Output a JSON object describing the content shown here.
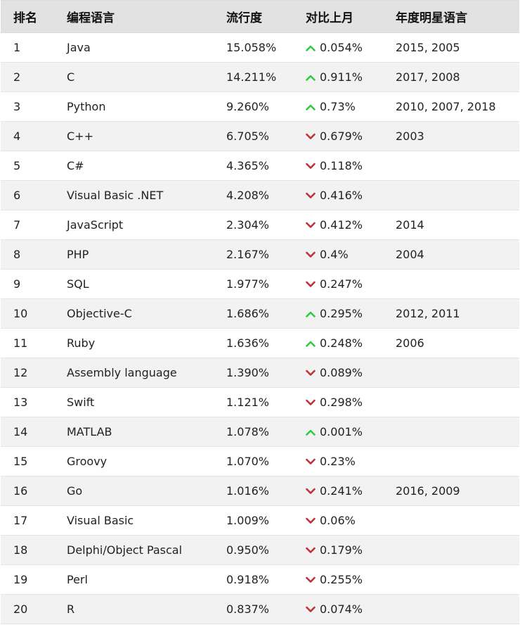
{
  "headers": [
    "排名",
    "编程语言",
    "流行度",
    "对比上月",
    "年度明星语言"
  ],
  "colors": {
    "up": "#2ecc40",
    "down": "#c0303a",
    "header_bg": "#e2e2e2",
    "stripe": "#f2f2f2"
  },
  "rows": [
    {
      "rank": "1",
      "lang": "Java",
      "pop": "15.058%",
      "dir": "up",
      "change": "0.054%",
      "star": "2015, 2005"
    },
    {
      "rank": "2",
      "lang": "C",
      "pop": "14.211%",
      "dir": "up",
      "change": "0.911%",
      "star": "2017, 2008"
    },
    {
      "rank": "3",
      "lang": "Python",
      "pop": "9.260%",
      "dir": "up",
      "change": "0.73%",
      "star": "2010, 2007, 2018"
    },
    {
      "rank": "4",
      "lang": "C++",
      "pop": "6.705%",
      "dir": "down",
      "change": "0.679%",
      "star": "2003"
    },
    {
      "rank": "5",
      "lang": "C#",
      "pop": "4.365%",
      "dir": "down",
      "change": "0.118%",
      "star": ""
    },
    {
      "rank": "6",
      "lang": "Visual Basic .NET",
      "pop": "4.208%",
      "dir": "down",
      "change": "0.416%",
      "star": ""
    },
    {
      "rank": "7",
      "lang": "JavaScript",
      "pop": "2.304%",
      "dir": "down",
      "change": "0.412%",
      "star": "2014"
    },
    {
      "rank": "8",
      "lang": "PHP",
      "pop": "2.167%",
      "dir": "down",
      "change": "0.4%",
      "star": "2004"
    },
    {
      "rank": "9",
      "lang": "SQL",
      "pop": "1.977%",
      "dir": "down",
      "change": "0.247%",
      "star": ""
    },
    {
      "rank": "10",
      "lang": "Objective-C",
      "pop": "1.686%",
      "dir": "up",
      "change": "0.295%",
      "star": "2012, 2011"
    },
    {
      "rank": "11",
      "lang": "Ruby",
      "pop": "1.636%",
      "dir": "up",
      "change": "0.248%",
      "star": "2006"
    },
    {
      "rank": "12",
      "lang": "Assembly language",
      "pop": "1.390%",
      "dir": "down",
      "change": "0.089%",
      "star": ""
    },
    {
      "rank": "13",
      "lang": "Swift",
      "pop": "1.121%",
      "dir": "down",
      "change": "0.298%",
      "star": ""
    },
    {
      "rank": "14",
      "lang": "MATLAB",
      "pop": "1.078%",
      "dir": "up",
      "change": "0.001%",
      "star": ""
    },
    {
      "rank": "15",
      "lang": "Groovy",
      "pop": "1.070%",
      "dir": "down",
      "change": "0.23%",
      "star": ""
    },
    {
      "rank": "16",
      "lang": "Go",
      "pop": "1.016%",
      "dir": "down",
      "change": "0.241%",
      "star": "2016, 2009"
    },
    {
      "rank": "17",
      "lang": "Visual Basic",
      "pop": "1.009%",
      "dir": "down",
      "change": "0.06%",
      "star": ""
    },
    {
      "rank": "18",
      "lang": "Delphi/Object Pascal",
      "pop": "0.950%",
      "dir": "down",
      "change": "0.179%",
      "star": ""
    },
    {
      "rank": "19",
      "lang": "Perl",
      "pop": "0.918%",
      "dir": "down",
      "change": "0.255%",
      "star": ""
    },
    {
      "rank": "20",
      "lang": "R",
      "pop": "0.837%",
      "dir": "down",
      "change": "0.074%",
      "star": ""
    }
  ]
}
